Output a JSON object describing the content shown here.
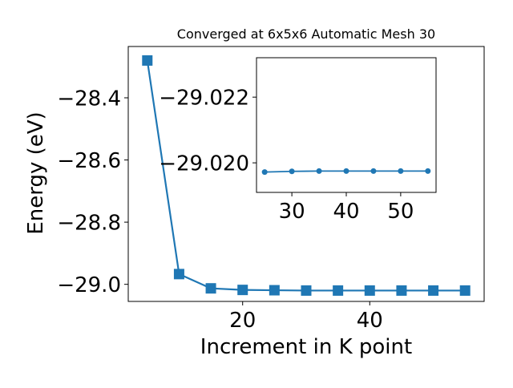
{
  "chart_data": [
    {
      "type": "line",
      "title": "Converged at 6x5x6 Automatic Mesh 30",
      "xlabel": "Increment in K point",
      "ylabel": "Energy (eV)",
      "xlim": [
        2,
        58
      ],
      "ylim": [
        -29.055,
        -28.235
      ],
      "xticks": [
        20,
        40
      ],
      "yticks": [
        -28.4,
        -28.6,
        -28.8,
        -29.0
      ],
      "xtick_labels": [
        "20",
        "40"
      ],
      "ytick_labels": [
        "−28.4",
        "−28.6",
        "−28.8",
        "−29.0"
      ],
      "marker": "square",
      "color": "#1f77b4",
      "grid": false,
      "series": [
        {
          "x": [
            5,
            10,
            15,
            20,
            25,
            30,
            35,
            40,
            45,
            50,
            55
          ],
          "y": [
            -28.28,
            -28.967,
            -29.013,
            -29.018,
            -29.019,
            -29.02,
            -29.02,
            -29.02,
            -29.02,
            -29.02,
            -29.02
          ]
        }
      ]
    },
    {
      "type": "line",
      "title": "",
      "xlabel": "",
      "ylabel": "",
      "xlim": [
        23.5,
        56.5
      ],
      "ylim": [
        -29.0191,
        -29.0232
      ],
      "xticks": [
        30,
        40,
        50
      ],
      "yticks": [
        -29.022,
        -29.02
      ],
      "xtick_labels": [
        "30",
        "40",
        "50"
      ],
      "ytick_labels": [
        "−29.022",
        "−29.020"
      ],
      "marker": "circle",
      "color": "#1f77b4",
      "grid": false,
      "series": [
        {
          "x": [
            25,
            30,
            35,
            40,
            45,
            50,
            55
          ],
          "y": [
            -29.01972,
            -29.01974,
            -29.01975,
            -29.01975,
            -29.01975,
            -29.01975,
            -29.01975
          ]
        }
      ]
    }
  ]
}
